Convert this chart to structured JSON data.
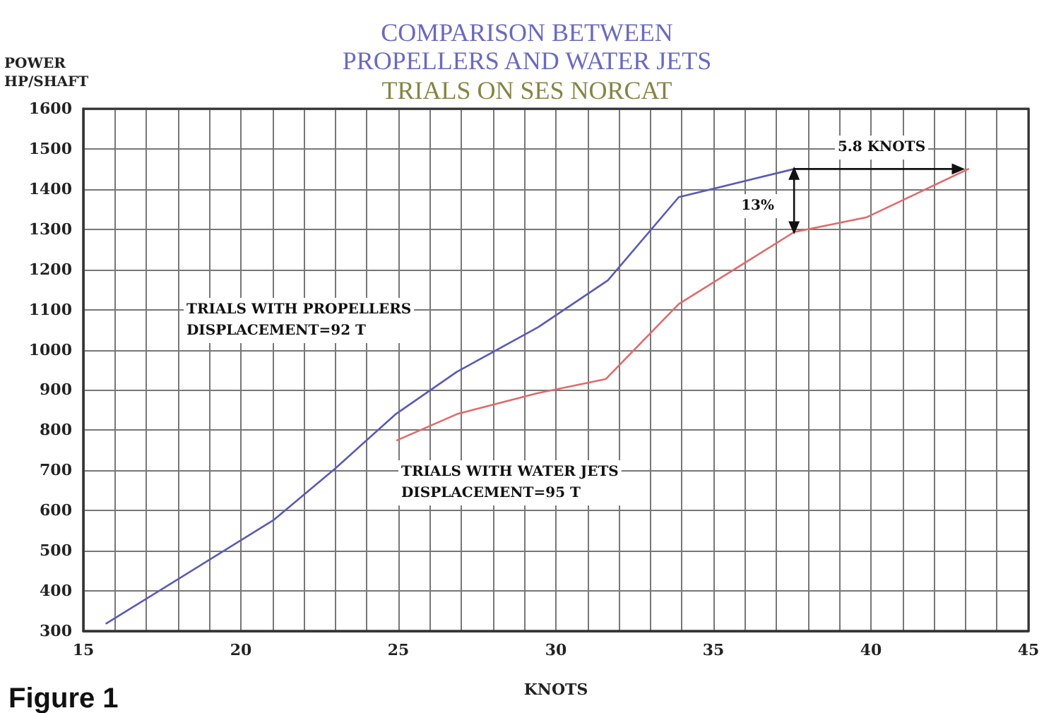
{
  "chart_data": {
    "type": "line",
    "title": "COMPARISON BETWEEN\nPROPELLERS AND WATER JETS",
    "subtitle": "TRIALS ON SES NORCAT",
    "xlabel": "KNOTS",
    "ylabel": "POWER\nHP/SHAFT",
    "xlim": [
      15,
      45
    ],
    "ylim": [
      300,
      1600
    ],
    "xticks": [
      15,
      {
        "value": 16,
        "label": null
      },
      {
        "value": 17,
        "label": null
      },
      {
        "value": 18,
        "label": null
      },
      {
        "value": 19,
        "label": null
      },
      20,
      {
        "value": 21,
        "label": null
      },
      {
        "value": 22,
        "label": null
      },
      {
        "value": 23,
        "label": null
      },
      {
        "value": 24,
        "label": null
      },
      25,
      {
        "value": 26,
        "label": null
      },
      {
        "value": 27,
        "label": null
      },
      {
        "value": 28,
        "label": null
      },
      {
        "value": 29,
        "label": null
      },
      30,
      {
        "value": 31,
        "label": null
      },
      {
        "value": 32,
        "label": null
      },
      {
        "value": 33,
        "label": null
      },
      {
        "value": 34,
        "label": null
      },
      35,
      {
        "value": 36,
        "label": null
      },
      {
        "value": 37,
        "label": null
      },
      {
        "value": 38,
        "label": null
      },
      {
        "value": 39,
        "label": null
      },
      40,
      {
        "value": 41,
        "label": null
      },
      {
        "value": 42,
        "label": null
      },
      {
        "value": 43,
        "label": null
      },
      {
        "value": 44,
        "label": null
      },
      45
    ],
    "yticks": [
      300,
      400,
      500,
      600,
      700,
      800,
      900,
      1000,
      1100,
      1200,
      1300,
      1400,
      1500,
      1600
    ],
    "grid": true,
    "marker": "none",
    "line_style": "solid",
    "series": [
      {
        "color": "#5a5ab4",
        "x": [
          15.73,
          21.03,
          23.0,
          24.9,
          26.85,
          29.41,
          31.65,
          33.9,
          37.56
        ],
        "values": [
          319,
          576,
          705,
          839,
          945,
          1055,
          1173,
          1380,
          1450
        ]
      },
      {
        "color": "#e06a6a",
        "x": [
          24.96,
          26.86,
          29.41,
          31.58,
          33.9,
          35.7,
          37.56,
          39.87,
          43.09
        ],
        "values": [
          775,
          840,
          892,
          927,
          1114,
          1202,
          1293,
          1330,
          1450
        ]
      }
    ],
    "annotations": [
      "TRIALS WITH PROPELLERS\nDISPLACEMENT=92 T",
      "TRIALS WITH WATER JETS\nDISPLACEMENT=95 T",
      "5.8 KNOTS",
      "13%",
      "Figure 1"
    ]
  }
}
